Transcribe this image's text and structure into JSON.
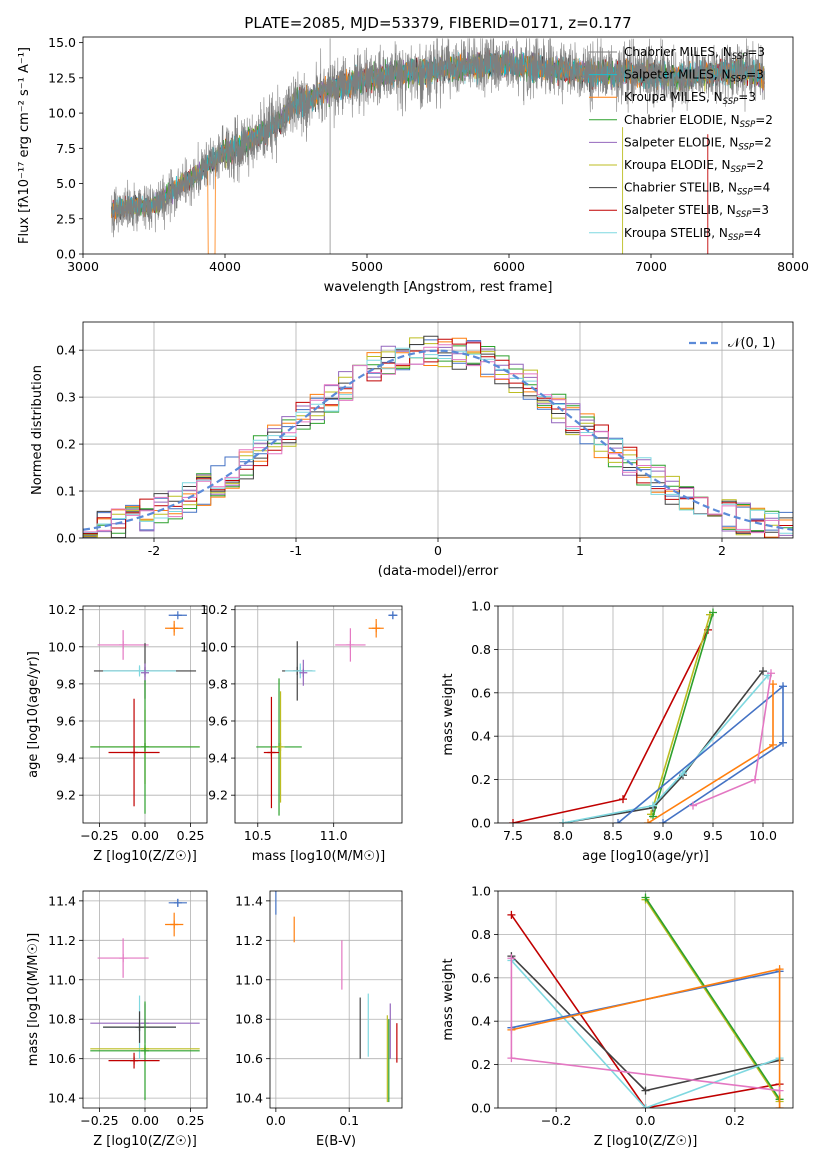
{
  "chart_data": [
    {
      "id": "spectrum",
      "type": "line",
      "title": "PLATE=2085, MJD=53379, FIBERID=0171, z=0.177",
      "xlabel": "wavelength [Angstrom, rest frame]",
      "ylabel": "Flux [fλ10⁻¹⁷ erg cm⁻² s⁻¹ A⁻¹]",
      "xlim": [
        3000,
        8000
      ],
      "ylim": [
        0,
        15.4
      ],
      "xticks": [
        3000,
        4000,
        5000,
        6000,
        7000,
        8000
      ],
      "yticks": [
        0.0,
        2.5,
        5.0,
        7.5,
        10.0,
        12.5,
        15.0
      ],
      "ytick_labels": [
        "0.0",
        "2.5",
        "5.0",
        "7.5",
        "10.0",
        "12.5",
        "15.0"
      ],
      "grid": false,
      "legend_position": "top-right",
      "data_range": [
        3200,
        7800
      ],
      "envelope": {
        "x": [
          3200,
          3300,
          3400,
          3500,
          3600,
          3700,
          3800,
          3900,
          4000,
          4100,
          4200,
          4300,
          4400,
          4500,
          4600,
          4700,
          4800,
          4900,
          5000,
          5200,
          5400,
          5600,
          5800,
          6000,
          6200,
          6400,
          6600,
          6800,
          7000,
          7200,
          7400,
          7600,
          7800
        ],
        "y": [
          3.0,
          3.3,
          3.4,
          3.4,
          4.2,
          5.0,
          5.6,
          6.6,
          7.3,
          7.5,
          8.2,
          8.8,
          9.5,
          10.8,
          11.0,
          11.6,
          11.8,
          12.2,
          12.5,
          12.8,
          13.0,
          13.2,
          13.3,
          13.5,
          13.2,
          13.0,
          12.8,
          12.8,
          12.7,
          12.6,
          12.8,
          13.0,
          12.5
        ]
      },
      "series": [
        {
          "name": "Chabrier MILES, N_SSP=3",
          "color": "#7f7f7f",
          "label_main": "Chabrier MILES, N",
          "label_sub": "SSP",
          "label_end": "=3"
        },
        {
          "name": "Salpeter MILES, N_SSP=3",
          "color": "#17becf",
          "label_main": "Salpeter MILES, N",
          "label_sub": "SSP",
          "label_end": "=3"
        },
        {
          "name": "Kroupa MILES, N_SSP=3",
          "color": "#ff7f0e",
          "label_main": "Kroupa MILES, N",
          "label_sub": "SSP",
          "label_end": "=3"
        },
        {
          "name": "Chabrier ELODIE, N_SSP=2",
          "color": "#2ca02c",
          "label_main": "Chabrier ELODIE, N",
          "label_sub": "SSP",
          "label_end": "=2"
        },
        {
          "name": "Salpeter ELODIE, N_SSP=2",
          "color": "#9467bd",
          "label_main": "Salpeter ELODIE, N",
          "label_sub": "SSP",
          "label_end": "=2"
        },
        {
          "name": "Kroupa ELODIE, N_SSP=2",
          "color": "#bcbd22",
          "label_main": "Kroupa ELODIE, N",
          "label_sub": "SSP",
          "label_end": "=2"
        },
        {
          "name": "Chabrier STELIB, N_SSP=4",
          "color": "#404040",
          "label_main": "Chabrier STELIB, N",
          "label_sub": "SSP",
          "label_end": "=4"
        },
        {
          "name": "Salpeter STELIB, N_SSP=3",
          "color": "#c00000",
          "label_main": "Salpeter STELIB, N",
          "label_sub": "SSP",
          "label_end": "=3"
        },
        {
          "name": "Kroupa STELIB, N_SSP=4",
          "color": "#7fd8e0",
          "label_main": "Kroupa STELIB, N",
          "label_sub": "SSP",
          "label_end": "=4"
        }
      ]
    },
    {
      "id": "residuals",
      "type": "line",
      "xlabel": "(data-model)/error",
      "ylabel": "Normed distribution",
      "xlim": [
        -2.5,
        2.5
      ],
      "ylim": [
        0,
        0.46
      ],
      "xticks": [
        -2,
        -1,
        0,
        1,
        2
      ],
      "yticks": [
        0.0,
        0.1,
        0.2,
        0.3,
        0.4
      ],
      "ytick_labels": [
        "0.0",
        "0.1",
        "0.2",
        "0.3",
        "0.4"
      ],
      "grid": true,
      "legend_position": "top-right",
      "legend": "𝒩(0, 1)",
      "bin_width": 0.1,
      "histogram_colors": [
        "#4472c4",
        "#ff7f0e",
        "#2ca02c",
        "#9467bd",
        "#bcbd22",
        "#404040",
        "#c00000",
        "#7fd8e0",
        "#e377c2"
      ],
      "gaussian_color": "#5b8ad8"
    },
    {
      "id": "age-vs-Z",
      "type": "scatter",
      "xlabel": "Z [log10(Z/Z☉)]",
      "ylabel": "age  [log10(age/yr)]",
      "xlim": [
        -0.34,
        0.34
      ],
      "ylim": [
        9.05,
        10.22
      ],
      "xticks": [
        -0.25,
        0.0,
        0.25
      ],
      "xtick_labels": [
        "−0.25",
        "0.00",
        "0.25"
      ],
      "yticks": [
        9.2,
        9.4,
        9.6,
        9.8,
        10.0,
        10.2
      ],
      "ytick_labels": [
        "9.2",
        "9.4",
        "9.6",
        "9.8",
        "10.0",
        "10.2"
      ],
      "grid": true,
      "points": [
        {
          "x": 0.18,
          "xerr": 0.05,
          "y": 10.17,
          "yerr": 0.0,
          "color": "#4472c4"
        },
        {
          "x": 0.16,
          "xerr": 0.05,
          "y": 10.1,
          "yerr": 0.04,
          "color": "#ff7f0e"
        },
        {
          "x": -0.12,
          "xerr": 0.14,
          "y": 10.01,
          "yerr": 0.08,
          "color": "#e377c2"
        },
        {
          "x": 0.0,
          "xerr": 0.28,
          "y": 9.87,
          "yerr": 0.15,
          "color": "#404040"
        },
        {
          "x": -0.03,
          "xerr": 0.2,
          "y": 9.87,
          "yerr": 0.03,
          "color": "#7fd8e0"
        },
        {
          "x": 0.0,
          "xerr": 0.0,
          "y": 9.86,
          "yerr": 0.05,
          "color": "#9467bd"
        },
        {
          "x": 0.0,
          "xerr": 0.3,
          "y": 9.46,
          "yerr": 0.2,
          "color": "#bcbd22"
        },
        {
          "x": 0.0,
          "xerr": 0.3,
          "y": 9.46,
          "yerr": 0.36,
          "color": "#2ca02c"
        },
        {
          "x": -0.06,
          "xerr": 0.14,
          "y": 9.43,
          "yerr": 0.29,
          "color": "#c00000"
        }
      ]
    },
    {
      "id": "age-vs-mass",
      "type": "scatter",
      "xlabel": "mass [log10(M/M☉)]",
      "xlim": [
        10.35,
        11.45
      ],
      "ylim": [
        9.05,
        10.22
      ],
      "xticks": [
        10.5,
        11.0
      ],
      "xtick_labels": [
        "10.5",
        "11.0"
      ],
      "yticks": [
        9.2,
        9.4,
        9.6,
        9.8,
        10.0,
        10.2
      ],
      "ytick_labels": [
        "9.2",
        "9.4",
        "9.6",
        "9.8",
        "10.0",
        "10.2"
      ],
      "grid": true,
      "points": [
        {
          "x": 11.39,
          "xerr": 0.03,
          "y": 10.17,
          "yerr": 0.02,
          "color": "#4472c4"
        },
        {
          "x": 11.28,
          "xerr": 0.05,
          "y": 10.1,
          "yerr": 0.05,
          "color": "#ff7f0e"
        },
        {
          "x": 11.11,
          "xerr": 0.1,
          "y": 10.01,
          "yerr": 0.09,
          "color": "#e377c2"
        },
        {
          "x": 10.76,
          "xerr": 0.1,
          "y": 9.87,
          "yerr": 0.16,
          "color": "#404040"
        },
        {
          "x": 10.78,
          "xerr": 0.1,
          "y": 9.87,
          "yerr": 0.04,
          "color": "#7fd8e0"
        },
        {
          "x": 10.8,
          "xerr": 0.0,
          "y": 9.86,
          "yerr": 0.07,
          "color": "#9467bd"
        },
        {
          "x": 10.64,
          "xerr": 0.15,
          "y": 9.46,
          "yerr": 0.37,
          "color": "#2ca02c"
        },
        {
          "x": 10.65,
          "xerr": 0.0,
          "y": 9.46,
          "yerr": 0.3,
          "color": "#bcbd22"
        },
        {
          "x": 10.59,
          "xerr": 0.05,
          "y": 9.43,
          "yerr": 0.3,
          "color": "#c00000"
        }
      ]
    },
    {
      "id": "weight-vs-age",
      "type": "line",
      "xlabel": "age  [log10(age/yr)]",
      "ylabel": "mass weight",
      "xlim": [
        7.35,
        10.3
      ],
      "ylim": [
        0,
        1.0
      ],
      "xticks": [
        7.5,
        8.0,
        8.5,
        9.0,
        9.5,
        10.0
      ],
      "xtick_labels": [
        "7.5",
        "8.0",
        "8.5",
        "9.0",
        "9.5",
        "10.0"
      ],
      "yticks": [
        0.0,
        0.2,
        0.4,
        0.6,
        0.8,
        1.0
      ],
      "ytick_labels": [
        "0.0",
        "0.2",
        "0.4",
        "0.6",
        "0.8",
        "1.0"
      ],
      "grid": true,
      "series": [
        {
          "color": "#c00000",
          "points": [
            [
              7.5,
              0.0
            ],
            [
              8.6,
              0.11
            ],
            [
              9.45,
              0.89
            ]
          ]
        },
        {
          "color": "#bcbd22",
          "points": [
            [
              8.88,
              0.04
            ],
            [
              9.47,
              0.96
            ]
          ]
        },
        {
          "color": "#2ca02c",
          "points": [
            [
              8.9,
              0.03
            ],
            [
              9.5,
              0.97
            ]
          ]
        },
        {
          "color": "#404040",
          "points": [
            [
              8.0,
              0.0
            ],
            [
              8.9,
              0.07
            ],
            [
              9.2,
              0.22
            ],
            [
              10.0,
              0.7
            ]
          ]
        },
        {
          "color": "#7fd8e0",
          "points": [
            [
              8.0,
              0.0
            ],
            [
              8.9,
              0.08
            ],
            [
              9.2,
              0.23
            ],
            [
              10.05,
              0.68
            ]
          ]
        },
        {
          "color": "#4472c4",
          "points": [
            [
              8.55,
              0.0
            ],
            [
              10.2,
              0.63
            ],
            [
              10.2,
              0.37
            ],
            [
              9.0,
              0.0
            ]
          ]
        },
        {
          "color": "#ff7f0e",
          "points": [
            [
              8.85,
              0.0
            ],
            [
              10.1,
              0.36
            ],
            [
              10.1,
              0.64
            ]
          ]
        },
        {
          "color": "#e377c2",
          "points": [
            [
              9.3,
              0.08
            ],
            [
              9.92,
              0.2
            ],
            [
              10.08,
              0.69
            ]
          ]
        }
      ]
    },
    {
      "id": "mass-vs-Z",
      "type": "scatter",
      "xlabel": "Z [log10(Z/Z☉)]",
      "ylabel": "mass [log10(M/M☉)]",
      "xlim": [
        -0.34,
        0.34
      ],
      "ylim": [
        10.35,
        11.45
      ],
      "xticks": [
        -0.25,
        0.0,
        0.25
      ],
      "xtick_labels": [
        "−0.25",
        "0.00",
        "0.25"
      ],
      "yticks": [
        10.4,
        10.6,
        10.8,
        11.0,
        11.2,
        11.4
      ],
      "ytick_labels": [
        "10.4",
        "10.6",
        "10.8",
        "11.0",
        "11.2",
        "11.4"
      ],
      "grid": true,
      "points": [
        {
          "x": 0.18,
          "xerr": 0.05,
          "y": 11.39,
          "yerr": 0.02,
          "color": "#4472c4"
        },
        {
          "x": 0.16,
          "xerr": 0.05,
          "y": 11.28,
          "yerr": 0.06,
          "color": "#ff7f0e"
        },
        {
          "x": -0.12,
          "xerr": 0.14,
          "y": 11.11,
          "yerr": 0.1,
          "color": "#e377c2"
        },
        {
          "x": 0.0,
          "xerr": 0.3,
          "y": 10.78,
          "yerr": 0.1,
          "color": "#9467bd"
        },
        {
          "x": -0.03,
          "xerr": 0.2,
          "y": 10.76,
          "yerr": 0.16,
          "color": "#7fd8e0"
        },
        {
          "x": -0.03,
          "xerr": 0.2,
          "y": 10.76,
          "yerr": 0.08,
          "color": "#404040"
        },
        {
          "x": 0.0,
          "xerr": 0.3,
          "y": 10.65,
          "yerr": 0.0,
          "color": "#bcbd22"
        },
        {
          "x": 0.0,
          "xerr": 0.3,
          "y": 10.64,
          "yerr": 0.25,
          "color": "#2ca02c"
        },
        {
          "x": -0.06,
          "xerr": 0.14,
          "y": 10.59,
          "yerr": 0.04,
          "color": "#c00000"
        }
      ]
    },
    {
      "id": "mass-vs-ebv",
      "type": "scatter",
      "xlabel": "E(B-V)",
      "xlim": [
        -0.008,
        0.172
      ],
      "ylim": [
        10.35,
        11.45
      ],
      "xticks": [
        0.0,
        0.1
      ],
      "xtick_labels": [
        "0.0",
        "0.1"
      ],
      "yticks": [
        10.4,
        10.6,
        10.8,
        11.0,
        11.2,
        11.4
      ],
      "ytick_labels": [
        "10.4",
        "10.6",
        "10.8",
        "11.0",
        "11.2",
        "11.4"
      ],
      "grid": true,
      "segments": [
        {
          "x": 0.0,
          "y0": 11.33,
          "y1": 11.45,
          "color": "#4472c4"
        },
        {
          "x": 0.025,
          "y0": 11.19,
          "y1": 11.32,
          "color": "#ff7f0e"
        },
        {
          "x": 0.09,
          "y0": 10.95,
          "y1": 11.2,
          "color": "#e377c2"
        },
        {
          "x": 0.115,
          "y0": 10.6,
          "y1": 10.91,
          "color": "#404040"
        },
        {
          "x": 0.126,
          "y0": 10.61,
          "y1": 10.93,
          "color": "#7fd8e0"
        },
        {
          "x": 0.152,
          "y0": 10.38,
          "y1": 10.82,
          "color": "#bcbd22"
        },
        {
          "x": 0.154,
          "y0": 10.38,
          "y1": 10.8,
          "color": "#2ca02c"
        },
        {
          "x": 0.156,
          "y0": 10.6,
          "y1": 10.88,
          "color": "#9467bd"
        },
        {
          "x": 0.165,
          "y0": 10.58,
          "y1": 10.78,
          "color": "#c00000"
        }
      ]
    },
    {
      "id": "weight-vs-Z",
      "type": "line",
      "xlabel": "Z [log10(Z/Z☉)]",
      "ylabel": "mass weight",
      "xlim": [
        -0.33,
        0.33
      ],
      "ylim": [
        0,
        1.0
      ],
      "xticks": [
        -0.2,
        0.0,
        0.2
      ],
      "xtick_labels": [
        "−0.2",
        "0.0",
        "0.2"
      ],
      "yticks": [
        0.0,
        0.2,
        0.4,
        0.6,
        0.8,
        1.0
      ],
      "ytick_labels": [
        "0.0",
        "0.2",
        "0.4",
        "0.6",
        "0.8",
        "1.0"
      ],
      "grid": true,
      "series": [
        {
          "color": "#c00000",
          "points": [
            [
              -0.3,
              0.89
            ],
            [
              0.0,
              0.0
            ],
            [
              0.3,
              0.11
            ]
          ]
        },
        {
          "color": "#bcbd22",
          "points": [
            [
              0.0,
              0.96
            ],
            [
              0.3,
              0.03
            ]
          ]
        },
        {
          "color": "#2ca02c",
          "points": [
            [
              0.0,
              0.97
            ],
            [
              0.3,
              0.04
            ]
          ]
        },
        {
          "color": "#404040",
          "points": [
            [
              -0.3,
              0.7
            ],
            [
              0.0,
              0.08
            ],
            [
              0.3,
              0.22
            ]
          ]
        },
        {
          "color": "#7fd8e0",
          "points": [
            [
              -0.3,
              0.68
            ],
            [
              0.0,
              0.0
            ],
            [
              0.3,
              0.23
            ]
          ]
        },
        {
          "color": "#4472c4",
          "points": [
            [
              -0.3,
              0.37
            ],
            [
              0.3,
              0.63
            ]
          ]
        },
        {
          "color": "#ff7f0e",
          "points": [
            [
              -0.3,
              0.36
            ],
            [
              0.3,
              0.64
            ],
            [
              0.3,
              0.0
            ]
          ]
        },
        {
          "color": "#e377c2",
          "points": [
            [
              -0.3,
              0.69
            ],
            [
              -0.3,
              0.23
            ],
            [
              0.3,
              0.08
            ]
          ]
        }
      ]
    }
  ]
}
